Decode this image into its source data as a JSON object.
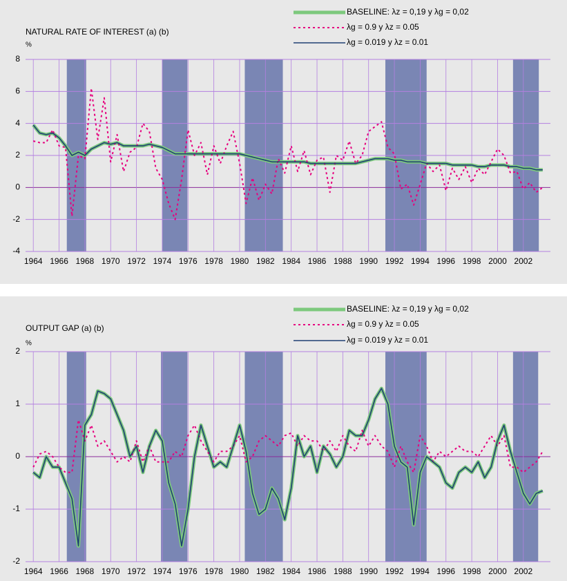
{
  "chart_data": [
    {
      "type": "line",
      "title": "NATURAL RATE OF INTEREST (a) (b)",
      "y_label": "%",
      "legend": "upper right",
      "grid": true,
      "xlim": [
        1963.4,
        2004.1
      ],
      "xticks": [
        1964,
        1966,
        1968,
        1970,
        1972,
        1974,
        1976,
        1978,
        1980,
        1982,
        1984,
        1986,
        1988,
        1990,
        1992,
        1994,
        1996,
        1998,
        2000,
        2002
      ],
      "ylim": [
        -4,
        8
      ],
      "yticks": [
        -4,
        -2,
        0,
        2,
        4,
        6,
        8
      ],
      "shade_color": "#7a86b4",
      "shaded_periods": [
        [
          1966.6,
          1968.1
        ],
        [
          1974.0,
          1975.95
        ],
        [
          1980.4,
          1983.35
        ],
        [
          1991.3,
          1994.5
        ],
        [
          2001.2,
          2003.2
        ]
      ],
      "x": [
        1964,
        1964.5,
        1965,
        1965.5,
        1966,
        1966.5,
        1967,
        1967.5,
        1968,
        1968.5,
        1969,
        1969.5,
        1970,
        1970.5,
        1971,
        1971.5,
        1972,
        1972.5,
        1973,
        1973.5,
        1974,
        1974.5,
        1975,
        1975.5,
        1976,
        1976.5,
        1977,
        1977.5,
        1978,
        1978.5,
        1979,
        1979.5,
        1980,
        1980.5,
        1981,
        1981.5,
        1982,
        1982.5,
        1983,
        1983.5,
        1984,
        1984.5,
        1985,
        1985.5,
        1986,
        1986.5,
        1987,
        1987.5,
        1988,
        1988.5,
        1989,
        1989.5,
        1990,
        1990.5,
        1991,
        1991.5,
        1992,
        1992.5,
        1993,
        1993.5,
        1994,
        1994.5,
        1995,
        1995.5,
        1996,
        1996.5,
        1997,
        1997.5,
        1998,
        1998.5,
        1999,
        1999.5,
        2000,
        2000.5,
        2001,
        2001.5,
        2002,
        2002.5,
        2003,
        2003.5
      ],
      "series": [
        {
          "name": "BASELINE:  λz = 0,19 y λg = 0,02",
          "color": "#7dc97d",
          "style": "thick",
          "values": [
            3.9,
            3.4,
            3.3,
            3.4,
            3.1,
            2.6,
            2.0,
            2.2,
            2.0,
            2.4,
            2.6,
            2.8,
            2.7,
            2.8,
            2.6,
            2.6,
            2.6,
            2.6,
            2.7,
            2.6,
            2.5,
            2.3,
            2.1,
            2.1,
            2.1,
            2.1,
            2.1,
            2.1,
            2.1,
            2.1,
            2.1,
            2.1,
            2.1,
            2.0,
            1.9,
            1.8,
            1.7,
            1.6,
            1.6,
            1.6,
            1.6,
            1.6,
            1.6,
            1.5,
            1.5,
            1.5,
            1.5,
            1.5,
            1.5,
            1.5,
            1.5,
            1.6,
            1.7,
            1.8,
            1.8,
            1.8,
            1.7,
            1.7,
            1.6,
            1.6,
            1.6,
            1.5,
            1.5,
            1.5,
            1.5,
            1.4,
            1.4,
            1.4,
            1.4,
            1.3,
            1.3,
            1.4,
            1.4,
            1.4,
            1.3,
            1.3,
            1.2,
            1.2,
            1.1,
            1.1
          ]
        },
        {
          "name": "λg = 0.9 y  λz = 0.05",
          "color": "#e6007e",
          "style": "dotted",
          "values": [
            2.9,
            2.8,
            2.8,
            3.6,
            2.6,
            2.5,
            -1.8,
            2.0,
            1.8,
            6.2,
            3.0,
            5.6,
            1.6,
            3.3,
            1.0,
            2.2,
            2.5,
            4.0,
            3.5,
            1.2,
            0.5,
            -1.0,
            -2.0,
            0.5,
            3.6,
            2.0,
            2.8,
            0.8,
            2.6,
            1.5,
            2.6,
            3.5,
            1.5,
            -1.0,
            0.6,
            -0.8,
            0.2,
            -0.4,
            1.8,
            0.9,
            2.6,
            1.0,
            2.3,
            0.8,
            1.7,
            1.9,
            -0.3,
            2.0,
            1.7,
            2.9,
            1.5,
            2.0,
            3.5,
            3.8,
            4.1,
            2.5,
            2.1,
            -0.1,
            0.2,
            -1.1,
            0.2,
            1.5,
            1.0,
            1.4,
            -0.2,
            1.2,
            0.5,
            1.3,
            0.3,
            1.2,
            0.8,
            1.6,
            2.4,
            2.0,
            0.9,
            1.0,
            -0.1,
            0.3,
            -0.3,
            0.0
          ]
        },
        {
          "name": "λg = 0.019  y  λz = 0.01",
          "color": "#1f3f73",
          "style": "solid",
          "values": [
            3.9,
            3.4,
            3.3,
            3.4,
            3.1,
            2.6,
            2.0,
            2.2,
            2.0,
            2.4,
            2.6,
            2.8,
            2.7,
            2.8,
            2.6,
            2.6,
            2.6,
            2.6,
            2.7,
            2.6,
            2.5,
            2.3,
            2.1,
            2.1,
            2.1,
            2.1,
            2.1,
            2.1,
            2.1,
            2.1,
            2.1,
            2.1,
            2.1,
            2.0,
            1.9,
            1.8,
            1.7,
            1.6,
            1.6,
            1.6,
            1.6,
            1.6,
            1.6,
            1.5,
            1.5,
            1.5,
            1.5,
            1.5,
            1.5,
            1.5,
            1.5,
            1.6,
            1.7,
            1.8,
            1.8,
            1.8,
            1.7,
            1.7,
            1.6,
            1.6,
            1.6,
            1.5,
            1.5,
            1.5,
            1.5,
            1.4,
            1.4,
            1.4,
            1.4,
            1.3,
            1.3,
            1.4,
            1.4,
            1.4,
            1.3,
            1.3,
            1.2,
            1.2,
            1.1,
            1.1
          ]
        }
      ]
    },
    {
      "type": "line",
      "title": "OUTPUT GAP (a) (b)",
      "y_label": "%",
      "legend": "upper right",
      "grid": true,
      "xlim": [
        1963.4,
        2004.1
      ],
      "xticks": [
        1964,
        1966,
        1968,
        1970,
        1972,
        1974,
        1976,
        1978,
        1980,
        1982,
        1984,
        1986,
        1988,
        1990,
        1992,
        1994,
        1996,
        1998,
        2000,
        2002
      ],
      "ylim": [
        -2,
        2
      ],
      "yticks": [
        -2,
        -1,
        0,
        1,
        2
      ],
      "shade_color": "#7a86b4",
      "shaded_periods": [
        [
          1966.6,
          1968.1
        ],
        [
          1973.9,
          1975.95
        ],
        [
          1980.4,
          1983.35
        ],
        [
          1991.3,
          1994.5
        ],
        [
          2001.2,
          2003.15
        ]
      ],
      "x": [
        1964,
        1964.5,
        1965,
        1965.5,
        1966,
        1966.5,
        1967,
        1967.5,
        1968,
        1968.5,
        1969,
        1969.5,
        1970,
        1970.5,
        1971,
        1971.5,
        1972,
        1972.5,
        1973,
        1973.5,
        1974,
        1974.5,
        1975,
        1975.5,
        1976,
        1976.5,
        1977,
        1977.5,
        1978,
        1978.5,
        1979,
        1979.5,
        1980,
        1980.5,
        1981,
        1981.5,
        1982,
        1982.5,
        1983,
        1983.5,
        1984,
        1984.5,
        1985,
        1985.5,
        1986,
        1986.5,
        1987,
        1987.5,
        1988,
        1988.5,
        1989,
        1989.5,
        1990,
        1990.5,
        1991,
        1991.5,
        1992,
        1992.5,
        1993,
        1993.5,
        1994,
        1994.5,
        1995,
        1995.5,
        1996,
        1996.5,
        1997,
        1997.5,
        1998,
        1998.5,
        1999,
        1999.5,
        2000,
        2000.5,
        2001,
        2001.5,
        2002,
        2002.5,
        2003,
        2003.5
      ],
      "series": [
        {
          "name": "BASELINE:  λz = 0,19 y λg = 0,02",
          "color": "#7dc97d",
          "style": "thick",
          "values": [
            -0.3,
            -0.4,
            0.0,
            -0.2,
            -0.2,
            -0.5,
            -0.8,
            -1.7,
            0.6,
            0.8,
            1.25,
            1.2,
            1.1,
            0.8,
            0.5,
            0.0,
            0.2,
            -0.3,
            0.2,
            0.5,
            0.3,
            -0.5,
            -0.9,
            -1.7,
            -1.0,
            0.0,
            0.6,
            0.2,
            -0.2,
            -0.1,
            -0.2,
            0.2,
            0.6,
            0.1,
            -0.7,
            -1.1,
            -1.0,
            -0.6,
            -0.8,
            -1.2,
            -0.6,
            0.4,
            0.0,
            0.2,
            -0.3,
            0.2,
            0.05,
            -0.2,
            0.0,
            0.5,
            0.4,
            0.4,
            0.7,
            1.1,
            1.3,
            1.0,
            0.2,
            -0.1,
            -0.2,
            -1.3,
            -0.3,
            0.0,
            -0.1,
            -0.2,
            -0.5,
            -0.6,
            -0.3,
            -0.2,
            -0.3,
            -0.1,
            -0.4,
            -0.2,
            0.3,
            0.6,
            0.1,
            -0.3,
            -0.7,
            -0.9,
            -0.7,
            -0.65
          ]
        },
        {
          "name": "λg = 0.9 y  λz = 0.05",
          "color": "#e6007e",
          "style": "dotted",
          "values": [
            -0.2,
            0.05,
            0.1,
            0.0,
            -0.2,
            -0.3,
            -0.3,
            0.7,
            0.3,
            0.6,
            0.2,
            0.3,
            0.1,
            -0.1,
            0.0,
            -0.1,
            0.3,
            -0.1,
            0.2,
            -0.1,
            -0.1,
            -0.1,
            0.1,
            0.0,
            0.4,
            0.6,
            0.3,
            0.1,
            -0.1,
            0.1,
            0.1,
            0.2,
            0.4,
            -0.1,
            0.0,
            0.3,
            0.4,
            0.3,
            0.2,
            0.4,
            0.45,
            0.2,
            0.4,
            0.3,
            0.3,
            0.1,
            0.3,
            0.1,
            0.4,
            0.2,
            0.1,
            0.5,
            0.2,
            0.4,
            0.2,
            0.1,
            -0.2,
            0.2,
            -0.1,
            -0.3,
            0.4,
            0.2,
            -0.1,
            0.1,
            0.0,
            0.1,
            0.2,
            0.1,
            0.1,
            0.0,
            0.2,
            0.4,
            0.2,
            0.4,
            -0.2,
            -0.2,
            -0.3,
            -0.2,
            -0.1,
            0.1
          ]
        },
        {
          "name": "λg = 0.019  y  λz = 0.01",
          "color": "#1f3f73",
          "style": "solid",
          "values": [
            -0.3,
            -0.4,
            0.0,
            -0.2,
            -0.2,
            -0.5,
            -0.8,
            -1.7,
            0.6,
            0.8,
            1.25,
            1.2,
            1.1,
            0.8,
            0.5,
            0.0,
            0.2,
            -0.3,
            0.2,
            0.5,
            0.3,
            -0.5,
            -0.9,
            -1.7,
            -1.0,
            0.0,
            0.6,
            0.2,
            -0.2,
            -0.1,
            -0.2,
            0.2,
            0.6,
            0.1,
            -0.7,
            -1.1,
            -1.0,
            -0.6,
            -0.8,
            -1.2,
            -0.6,
            0.4,
            0.0,
            0.2,
            -0.3,
            0.2,
            0.05,
            -0.2,
            0.0,
            0.5,
            0.4,
            0.4,
            0.7,
            1.1,
            1.3,
            1.0,
            0.2,
            -0.1,
            -0.2,
            -1.3,
            -0.3,
            0.0,
            -0.1,
            -0.2,
            -0.5,
            -0.6,
            -0.3,
            -0.2,
            -0.3,
            -0.1,
            -0.4,
            -0.2,
            0.3,
            0.6,
            0.1,
            -0.3,
            -0.7,
            -0.9,
            -0.7,
            -0.65
          ]
        }
      ]
    }
  ]
}
